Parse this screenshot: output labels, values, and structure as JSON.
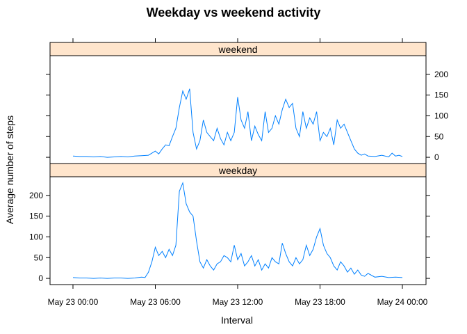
{
  "chart_data": {
    "type": "line",
    "title": "Weekday vs weekend activity",
    "xlabel": "Interval",
    "ylabel": "Average number of steps",
    "x_ticks": [
      "May 23 00:00",
      "May 23 06:00",
      "May 23 12:00",
      "May 23 18:00",
      "May 24 00:00"
    ],
    "xlim": [
      "May 23 00:00",
      "May 24 00:00"
    ],
    "y_ticks": [
      0,
      50,
      100,
      150,
      200
    ],
    "ylim": [
      -15,
      245
    ],
    "line_color": "#0080ff",
    "strip_color": "#ffe5cc",
    "panels": [
      {
        "label": "weekend",
        "y_axis_side": "right",
        "series": [
          {
            "x_hours": [
              0,
              0.5,
              1,
              1.5,
              2,
              2.5,
              3,
              3.5,
              4,
              4.5,
              5,
              5.5,
              5.75,
              6,
              6.25,
              6.5,
              6.75,
              7,
              7.25,
              7.5,
              7.75,
              8,
              8.25,
              8.5,
              8.75,
              9,
              9.25,
              9.5,
              9.75,
              10,
              10.25,
              10.5,
              10.75,
              11,
              11.25,
              11.5,
              11.75,
              12,
              12.25,
              12.5,
              12.75,
              13,
              13.25,
              13.5,
              13.75,
              14,
              14.25,
              14.5,
              14.75,
              15,
              15.25,
              15.5,
              15.75,
              16,
              16.25,
              16.5,
              16.75,
              17,
              17.25,
              17.5,
              17.75,
              18,
              18.25,
              18.5,
              18.75,
              19,
              19.25,
              19.5,
              19.75,
              20,
              20.25,
              20.5,
              20.75,
              21,
              21.25,
              21.5,
              22,
              22.5,
              23,
              23.25,
              23.5,
              23.75,
              24
            ],
            "values": [
              3,
              2,
              2,
              1,
              2,
              0,
              1,
              2,
              1,
              3,
              4,
              5,
              10,
              15,
              8,
              20,
              30,
              28,
              50,
              70,
              120,
              160,
              140,
              165,
              60,
              20,
              40,
              90,
              60,
              50,
              40,
              70,
              45,
              30,
              60,
              40,
              60,
              145,
              90,
              70,
              110,
              40,
              75,
              55,
              40,
              110,
              60,
              70,
              100,
              80,
              115,
              140,
              120,
              130,
              70,
              50,
              110,
              70,
              95,
              80,
              110,
              40,
              60,
              50,
              70,
              30,
              90,
              70,
              80,
              60,
              40,
              20,
              10,
              5,
              8,
              3,
              2,
              5,
              1,
              10,
              3,
              5,
              2
            ]
          }
        ]
      },
      {
        "label": "weekday",
        "y_axis_side": "left",
        "series": [
          {
            "x_hours": [
              0,
              0.5,
              1,
              1.5,
              2,
              2.5,
              3,
              3.5,
              4,
              4.5,
              5,
              5.25,
              5.5,
              5.75,
              6,
              6.25,
              6.5,
              6.75,
              7,
              7.25,
              7.5,
              7.75,
              8,
              8.25,
              8.5,
              8.75,
              9,
              9.25,
              9.5,
              9.75,
              10,
              10.25,
              10.5,
              10.75,
              11,
              11.25,
              11.5,
              11.75,
              12,
              12.25,
              12.5,
              12.75,
              13,
              13.25,
              13.5,
              13.75,
              14,
              14.25,
              14.5,
              14.75,
              15,
              15.25,
              15.5,
              15.75,
              16,
              16.25,
              16.5,
              16.75,
              17,
              17.25,
              17.5,
              17.75,
              18,
              18.25,
              18.5,
              18.75,
              19,
              19.25,
              19.5,
              19.75,
              20,
              20.25,
              20.5,
              20.75,
              21,
              21.25,
              21.5,
              22,
              22.5,
              23,
              23.5,
              24
            ],
            "values": [
              2,
              1,
              1,
              0,
              1,
              0,
              1,
              1,
              0,
              1,
              3,
              2,
              15,
              40,
              75,
              55,
              65,
              50,
              70,
              55,
              80,
              210,
              230,
              180,
              160,
              150,
              90,
              40,
              25,
              45,
              30,
              20,
              35,
              40,
              55,
              50,
              40,
              80,
              45,
              60,
              30,
              40,
              55,
              30,
              45,
              20,
              35,
              25,
              50,
              40,
              35,
              85,
              60,
              40,
              30,
              50,
              35,
              45,
              80,
              55,
              70,
              100,
              120,
              80,
              60,
              50,
              30,
              20,
              40,
              30,
              15,
              25,
              10,
              20,
              8,
              5,
              12,
              3,
              5,
              2,
              3,
              2
            ]
          }
        ]
      }
    ]
  }
}
